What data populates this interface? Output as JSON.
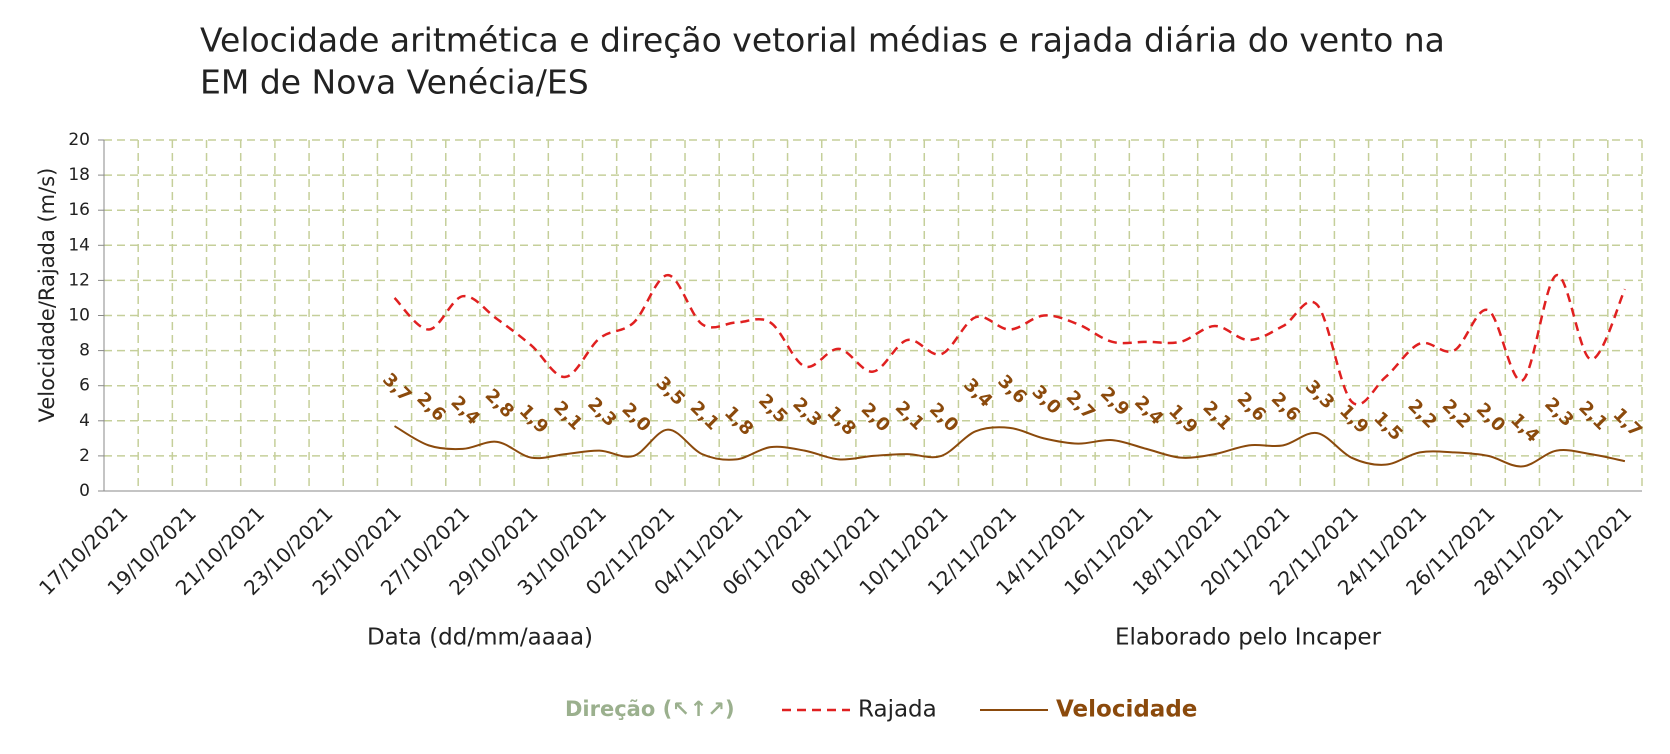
{
  "chart_data": {
    "type": "line",
    "title": [
      "Velocidade aritmética e direção vetorial médias e rajada diária do vento na",
      "EM de Nova Venécia/ES"
    ],
    "xlabel": "Data (dd/mm/aaaa)",
    "ylabel": "Velocidade/Rajada (m/s)",
    "note": "Elaborado pelo Incaper",
    "categories": [
      "17/10/2021",
      null,
      "19/10/2021",
      null,
      "21/10/2021",
      null,
      "23/10/2021",
      null,
      "25/10/2021",
      null,
      "27/10/2021",
      null,
      "29/10/2021",
      null,
      "31/10/2021",
      null,
      "02/11/2021",
      null,
      "04/11/2021",
      null,
      "06/11/2021",
      null,
      "08/11/2021",
      null,
      "10/11/2021",
      null,
      "12/11/2021",
      null,
      "14/11/2021",
      null,
      "16/11/2021",
      null,
      "18/11/2021",
      null,
      "20/11/2021",
      null,
      "22/11/2021",
      null,
      "24/11/2021",
      null,
      "26/11/2021",
      null,
      "28/11/2021",
      null,
      "30/11/2021"
    ],
    "ylim": [
      0,
      20
    ],
    "yticks": [
      0,
      2,
      4,
      6,
      8,
      10,
      12,
      14,
      16,
      18,
      20
    ],
    "grid": true,
    "direction_legend": {
      "name": "Direção (↖↑↗)",
      "color": "#9bb08e"
    },
    "series": [
      {
        "name": "Rajada",
        "color": "#e02020",
        "dashed": true,
        "values": [
          null,
          null,
          null,
          null,
          null,
          null,
          null,
          null,
          11.0,
          9.2,
          11.1,
          9.8,
          8.3,
          6.5,
          8.7,
          9.6,
          12.3,
          9.5,
          9.6,
          9.6,
          7.1,
          8.1,
          6.8,
          8.6,
          7.8,
          9.9,
          9.2,
          10.0,
          9.5,
          8.5,
          8.5,
          8.5,
          9.4,
          8.6,
          9.4,
          10.6,
          5.1,
          6.5,
          8.4,
          8.0,
          10.3,
          6.3,
          12.3,
          7.5,
          11.5
        ]
      },
      {
        "name": "Velocidade",
        "color": "#8b4a0c",
        "dashed": false,
        "values": [
          null,
          null,
          null,
          null,
          null,
          null,
          null,
          null,
          3.7,
          2.6,
          2.4,
          2.8,
          1.9,
          2.1,
          2.3,
          2.0,
          3.5,
          2.1,
          1.8,
          2.5,
          2.3,
          1.8,
          2.0,
          2.1,
          2.0,
          3.4,
          3.6,
          3.0,
          2.7,
          2.9,
          2.4,
          1.9,
          2.1,
          2.6,
          2.6,
          3.3,
          1.9,
          1.5,
          2.2,
          2.2,
          2.0,
          1.4,
          2.3,
          2.1,
          1.7
        ],
        "value_labels": [
          null,
          null,
          null,
          null,
          null,
          null,
          null,
          null,
          "3,7",
          "2,6",
          "2,4",
          "2,8",
          "1,9",
          "2,1",
          "2,3",
          "2,0",
          "3,5",
          "2,1",
          "1,8",
          "2,5",
          "2,3",
          "1,8",
          "2,0",
          "2,1",
          "2,0",
          "3,4",
          "3,6",
          "3,0",
          "2,7",
          "2,9",
          "2,4",
          "1,9",
          "2,1",
          "2,6",
          "2,6",
          "3,3",
          "1,9",
          "1,5",
          "2,2",
          "2,2",
          "2,0",
          "1,4",
          "2,3",
          "2,1",
          "1,7"
        ]
      }
    ]
  }
}
